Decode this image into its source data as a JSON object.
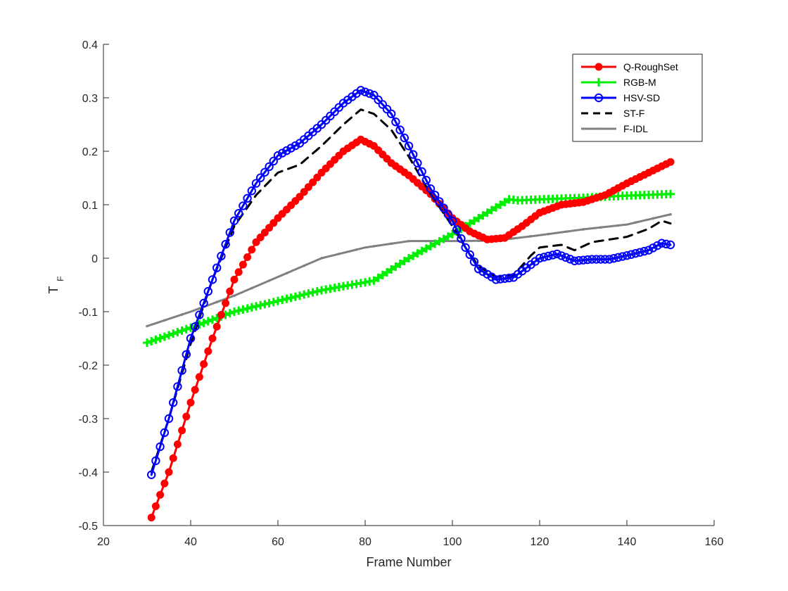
{
  "chart_data": {
    "type": "line",
    "title": "",
    "xlabel": "Frame Number",
    "ylabel": "T",
    "ylabel_subscript": "F",
    "xlim": [
      20,
      160
    ],
    "ylim": [
      -0.5,
      0.4
    ],
    "xticks": [
      20,
      40,
      60,
      80,
      100,
      120,
      140,
      160
    ],
    "yticks": [
      -0.5,
      -0.4,
      -0.3,
      -0.2,
      -0.1,
      0,
      0.1,
      0.2,
      0.3,
      0.4
    ],
    "xtick_labels": [
      "20",
      "40",
      "60",
      "80",
      "100",
      "120",
      "140",
      "160"
    ],
    "ytick_labels": [
      "-0.5",
      "-0.4",
      "-0.3",
      "-0.2",
      "-0.1",
      "0",
      "0.1",
      "0.2",
      "0.3",
      "0.4"
    ],
    "grid": false,
    "legend_position": "top-right",
    "series": [
      {
        "name": "Q-RoughSet",
        "color": "#ff0000",
        "marker": "star",
        "line_style": "solid",
        "points": [
          [
            31,
            -0.485
          ],
          [
            35,
            -0.4
          ],
          [
            40,
            -0.27
          ],
          [
            45,
            -0.15
          ],
          [
            50,
            -0.04
          ],
          [
            55,
            0.03
          ],
          [
            60,
            0.075
          ],
          [
            65,
            0.115
          ],
          [
            70,
            0.16
          ],
          [
            75,
            0.2
          ],
          [
            79,
            0.222
          ],
          [
            82,
            0.21
          ],
          [
            86,
            0.178
          ],
          [
            90,
            0.155
          ],
          [
            95,
            0.12
          ],
          [
            100,
            0.075
          ],
          [
            104,
            0.05
          ],
          [
            108,
            0.035
          ],
          [
            112,
            0.038
          ],
          [
            116,
            0.06
          ],
          [
            120,
            0.085
          ],
          [
            125,
            0.1
          ],
          [
            130,
            0.105
          ],
          [
            135,
            0.118
          ],
          [
            140,
            0.14
          ],
          [
            145,
            0.16
          ],
          [
            150,
            0.18
          ]
        ]
      },
      {
        "name": "RGB-M",
        "color": "#00ee00",
        "marker": "plus",
        "line_style": "solid",
        "points": [
          [
            30,
            -0.158
          ],
          [
            40,
            -0.13
          ],
          [
            50,
            -0.1
          ],
          [
            60,
            -0.08
          ],
          [
            70,
            -0.06
          ],
          [
            80,
            -0.045
          ],
          [
            82,
            -0.042
          ],
          [
            90,
            0.0
          ],
          [
            100,
            0.045
          ],
          [
            105,
            0.07
          ],
          [
            113,
            0.11
          ],
          [
            115,
            0.108
          ],
          [
            120,
            0.11
          ],
          [
            130,
            0.113
          ],
          [
            140,
            0.117
          ],
          [
            150,
            0.12
          ]
        ]
      },
      {
        "name": "HSV-SD",
        "color": "#0000ff",
        "marker": "circle",
        "line_style": "solid",
        "points": [
          [
            31,
            -0.405
          ],
          [
            35,
            -0.3
          ],
          [
            40,
            -0.15
          ],
          [
            45,
            -0.04
          ],
          [
            50,
            0.07
          ],
          [
            55,
            0.14
          ],
          [
            60,
            0.192
          ],
          [
            65,
            0.215
          ],
          [
            70,
            0.25
          ],
          [
            75,
            0.29
          ],
          [
            79,
            0.314
          ],
          [
            82,
            0.305
          ],
          [
            86,
            0.27
          ],
          [
            90,
            0.21
          ],
          [
            95,
            0.13
          ],
          [
            100,
            0.07
          ],
          [
            103,
            0.02
          ],
          [
            106,
            -0.02
          ],
          [
            110,
            -0.04
          ],
          [
            114,
            -0.036
          ],
          [
            118,
            -0.012
          ],
          [
            120,
            0.0
          ],
          [
            124,
            0.008
          ],
          [
            128,
            -0.005
          ],
          [
            132,
            -0.002
          ],
          [
            136,
            -0.002
          ],
          [
            140,
            0.005
          ],
          [
            145,
            0.015
          ],
          [
            148,
            0.028
          ],
          [
            150,
            0.025
          ]
        ]
      },
      {
        "name": "ST-F",
        "color": "#000000",
        "marker": "none",
        "line_style": "dashed",
        "points": [
          [
            31,
            -0.4
          ],
          [
            35,
            -0.3
          ],
          [
            40,
            -0.16
          ],
          [
            45,
            -0.04
          ],
          [
            50,
            0.06
          ],
          [
            55,
            0.118
          ],
          [
            60,
            0.16
          ],
          [
            65,
            0.175
          ],
          [
            70,
            0.21
          ],
          [
            75,
            0.25
          ],
          [
            79,
            0.278
          ],
          [
            82,
            0.27
          ],
          [
            86,
            0.24
          ],
          [
            90,
            0.19
          ],
          [
            95,
            0.12
          ],
          [
            100,
            0.06
          ],
          [
            103,
            0.02
          ],
          [
            106,
            -0.015
          ],
          [
            110,
            -0.035
          ],
          [
            114,
            -0.032
          ],
          [
            118,
            0.005
          ],
          [
            120,
            0.02
          ],
          [
            125,
            0.025
          ],
          [
            128,
            0.015
          ],
          [
            132,
            0.03
          ],
          [
            136,
            0.035
          ],
          [
            140,
            0.04
          ],
          [
            145,
            0.055
          ],
          [
            148,
            0.07
          ],
          [
            150,
            0.065
          ]
        ]
      },
      {
        "name": "F-IDL",
        "color": "#808080",
        "marker": "dot",
        "line_style": "solid",
        "points": [
          [
            30,
            -0.127
          ],
          [
            40,
            -0.1
          ],
          [
            50,
            -0.07
          ],
          [
            60,
            -0.035
          ],
          [
            70,
            0.0
          ],
          [
            80,
            0.02
          ],
          [
            90,
            0.032
          ],
          [
            100,
            0.032
          ],
          [
            110,
            0.033
          ],
          [
            120,
            0.043
          ],
          [
            130,
            0.054
          ],
          [
            140,
            0.063
          ],
          [
            150,
            0.082
          ]
        ]
      }
    ]
  }
}
